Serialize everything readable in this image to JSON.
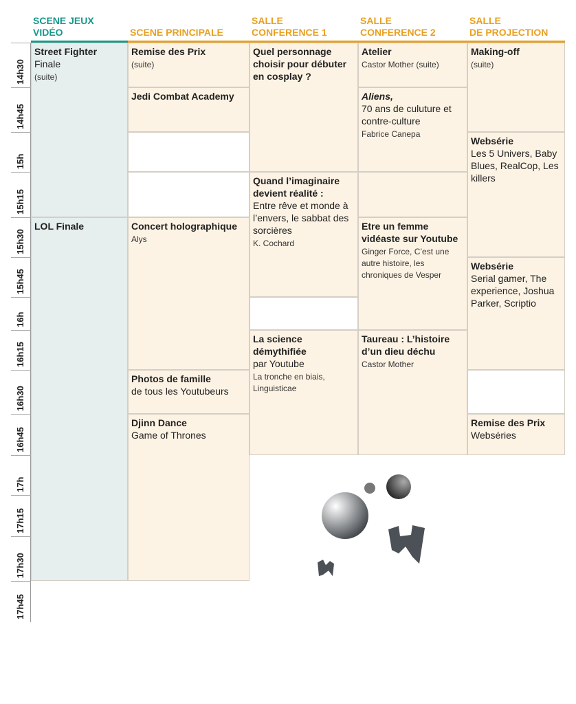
{
  "headers": [
    [
      "SCENE JEUX",
      "VIDÉO"
    ],
    [
      "SCENE PRINCIPALE"
    ],
    [
      "SALLE",
      "CONFERENCE 1"
    ],
    [
      "SALLE",
      "CONFERENCE 2"
    ],
    [
      "SALLE",
      "DE PROJECTION"
    ]
  ],
  "times": [
    "14h30",
    "14h45",
    "15h",
    "15h15",
    "15h30",
    "15h45",
    "16h",
    "16h15",
    "16h30",
    "16h45",
    "17h",
    "17h15",
    "17h30",
    "17h45"
  ],
  "columns": [
    [
      {
        "title": "Street Fighter",
        "subtitle": "Finale",
        "note": "(suite)"
      },
      {
        "title": "LOL Finale"
      }
    ],
    [
      {
        "title": "Remise des Prix",
        "note": "(suite)"
      },
      {
        "title": "Jedi Combat Academy"
      },
      {
        "title": "Concert holographique",
        "note": "Alys"
      },
      {
        "title": "Photos de famille",
        "subtitle": "de tous les Youtubeurs"
      },
      {
        "title": "Djinn Dance",
        "subtitle": "Game of Thrones"
      }
    ],
    [
      {
        "title": "Quel personnage choisir pour débuter en cosplay ?"
      },
      {
        "title": "Quand l’imaginaire devient réalité :",
        "subtitle": "Entre rêve et monde à l’envers, le sabbat des sorcières",
        "note": "K. Cochard"
      },
      {
        "title": "La science démythifiée",
        "subtitle": "par Youtube",
        "note": "La tronche en biais, Linguisticae"
      }
    ],
    [
      {
        "title": "Atelier",
        "note": "Castor Mother (suite)"
      },
      {
        "title": "Aliens,",
        "subtitle": "70 ans de culuture et contre-culture",
        "note": "Fabrice Canepa"
      },
      {
        "title": "Etre un femme vidéaste sur Youtube",
        "note": "Ginger Force, C’est une autre histoire, les chroniques de Vesper"
      },
      {
        "title": "Taureau : L’histoire d’un dieu déchu",
        "note": "Castor Mother"
      }
    ],
    [
      {
        "title": "Making-off",
        "note": "(suite)"
      },
      {
        "title": "Websérie",
        "subtitle": "Les 5 Univers, Baby Blues, RealCop, Les killers"
      },
      {
        "title": "Websérie",
        "subtitle": "Serial gamer, The experience, Joshua Parker, Scriptio"
      },
      {
        "title": "Remise des Prix",
        "subtitle": "Webséries"
      }
    ]
  ]
}
